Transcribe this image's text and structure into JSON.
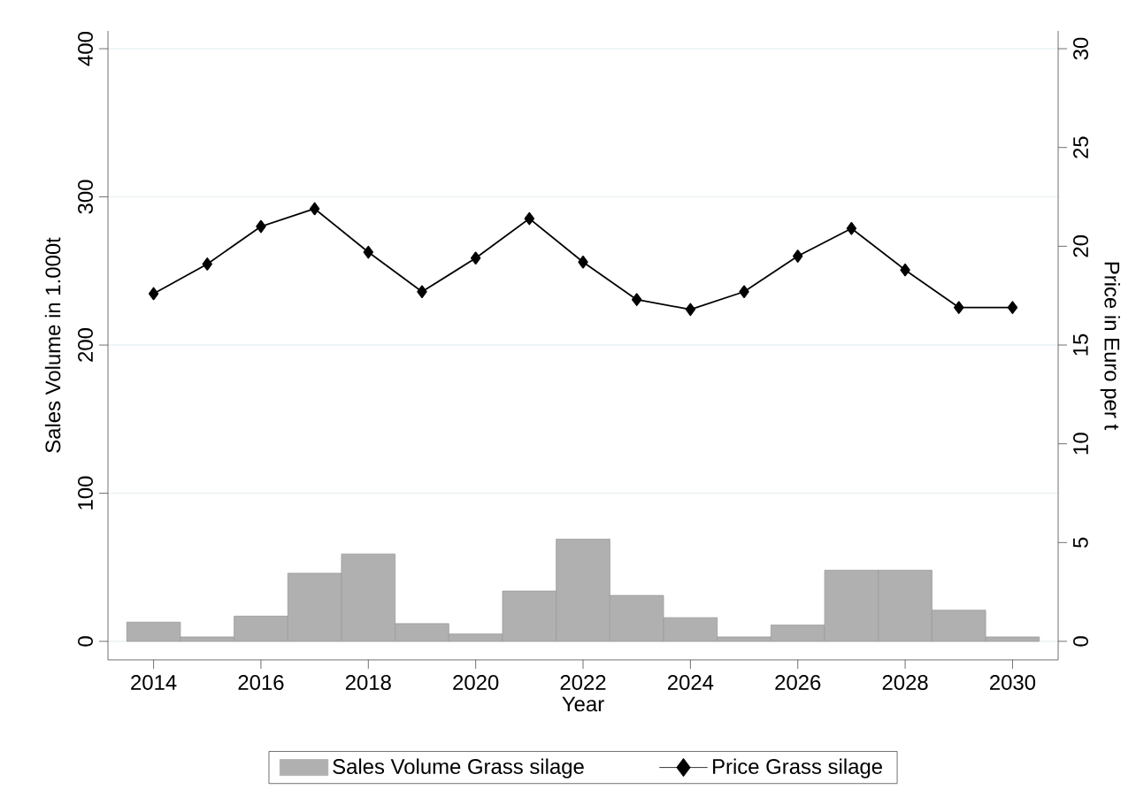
{
  "chart_data": {
    "type": "bar",
    "xlabel": "Year",
    "ylabel": "Sales Volume in 1.000t",
    "y2label": "Price in Euro per t",
    "x": [
      2014,
      2015,
      2016,
      2017,
      2018,
      2019,
      2020,
      2021,
      2022,
      2023,
      2024,
      2025,
      2026,
      2027,
      2028,
      2029,
      2030
    ],
    "series": [
      {
        "name": "Sales Volume Grass silage",
        "color": "#b0b0b0",
        "values": [
          13,
          3,
          17,
          46,
          59,
          12,
          5,
          34,
          69,
          31,
          16,
          3,
          11,
          48,
          48,
          21,
          3
        ]
      },
      {
        "name": "Price Grass silage",
        "type": "line",
        "color": "#000000",
        "axis": "y2",
        "values": [
          17.6,
          19.1,
          21.0,
          21.9,
          19.7,
          17.7,
          19.4,
          21.4,
          19.2,
          17.3,
          16.8,
          17.7,
          19.5,
          20.9,
          18.8,
          16.9,
          16.9
        ]
      }
    ],
    "xlim": [
      2013.15,
      2030.85
    ],
    "xticks": [
      2014,
      2016,
      2018,
      2020,
      2022,
      2024,
      2026,
      2028,
      2030
    ],
    "ylim": [
      -12.5,
      412
    ],
    "yticks": [
      0,
      100,
      200,
      300,
      400
    ],
    "y2lim": [
      -0.94,
      30.9
    ],
    "y2ticks": [
      0,
      5,
      10,
      15,
      20,
      25,
      30
    ],
    "grid": "y",
    "legend": "bottom",
    "marker": "diamond",
    "line_style": "solid"
  }
}
